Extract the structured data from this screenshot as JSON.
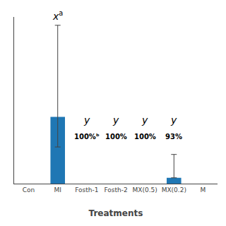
{
  "chart_data": {
    "type": "bar",
    "xlabel": "Treatments",
    "categories": [
      "Con",
      "MI",
      "Fosth-1",
      "Fosth-2",
      "MX(0.5)",
      "MX(0.2)",
      "M"
    ],
    "values": [
      0,
      40,
      0,
      0,
      0,
      3.5,
      0
    ],
    "errors_upper": [
      0,
      55,
      0,
      0,
      0,
      14,
      0
    ],
    "errors_lower": [
      0,
      18,
      0,
      0,
      0,
      0,
      0
    ],
    "ylim": [
      0,
      100
    ],
    "yticks": [],
    "tick_labels": "x",
    "grid": false,
    "annotations": [
      {
        "category": "MI",
        "text": "x",
        "sup": "a"
      },
      {
        "category": "Fosth-1",
        "label": "y",
        "pct": "100%ᵇ"
      },
      {
        "category": "Fosth-2",
        "label": "y",
        "pct": "100%"
      },
      {
        "category": "MX(0.5)",
        "label": "y",
        "pct": "100%"
      },
      {
        "category": "MX(0.2)",
        "label": "y",
        "pct": "93%"
      }
    ]
  }
}
